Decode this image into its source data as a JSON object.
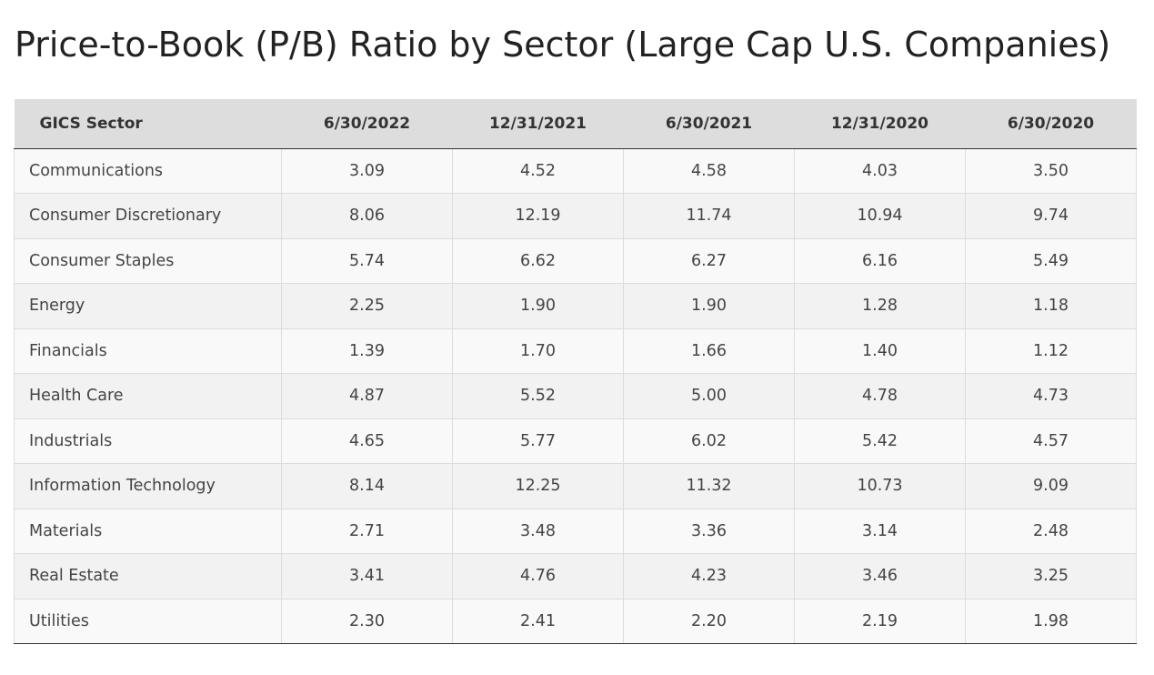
{
  "chart_data": {
    "type": "table",
    "title": "Price-to-Book (P/B) Ratio by Sector (Large Cap U.S. Companies)",
    "columns": [
      "GICS Sector",
      "6/30/2022",
      "12/31/2021",
      "6/30/2021",
      "12/31/2020",
      "6/30/2020"
    ],
    "rows": [
      {
        "sector": "Communications",
        "values": [
          "3.09",
          "4.52",
          "4.58",
          "4.03",
          "3.50"
        ]
      },
      {
        "sector": "Consumer Discretionary",
        "values": [
          "8.06",
          "12.19",
          "11.74",
          "10.94",
          "9.74"
        ]
      },
      {
        "sector": "Consumer Staples",
        "values": [
          "5.74",
          "6.62",
          "6.27",
          "6.16",
          "5.49"
        ]
      },
      {
        "sector": "Energy",
        "values": [
          "2.25",
          "1.90",
          "1.90",
          "1.28",
          "1.18"
        ]
      },
      {
        "sector": "Financials",
        "values": [
          "1.39",
          "1.70",
          "1.66",
          "1.40",
          "1.12"
        ]
      },
      {
        "sector": "Health Care",
        "values": [
          "4.87",
          "5.52",
          "5.00",
          "4.78",
          "4.73"
        ]
      },
      {
        "sector": "Industrials",
        "values": [
          "4.65",
          "5.77",
          "6.02",
          "5.42",
          "4.57"
        ]
      },
      {
        "sector": "Information Technology",
        "values": [
          "8.14",
          "12.25",
          "11.32",
          "10.73",
          "9.09"
        ]
      },
      {
        "sector": "Materials",
        "values": [
          "2.71",
          "3.48",
          "3.36",
          "3.14",
          "2.48"
        ]
      },
      {
        "sector": "Real Estate",
        "values": [
          "3.41",
          "4.76",
          "4.23",
          "3.46",
          "3.25"
        ]
      },
      {
        "sector": "Utilities",
        "values": [
          "2.30",
          "2.41",
          "2.20",
          "2.19",
          "1.98"
        ]
      }
    ]
  },
  "colors": {
    "header_bg": "#dddddd",
    "row_odd_bg": "#f9f9f9",
    "row_even_bg": "#f2f2f2",
    "text": "#333333"
  }
}
